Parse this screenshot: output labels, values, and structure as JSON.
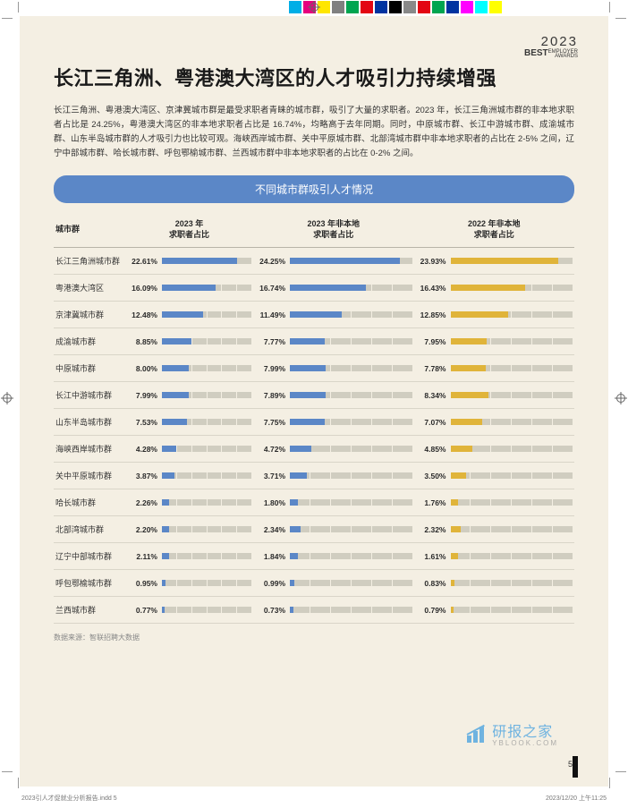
{
  "brand": {
    "year": "2023",
    "best": "BEST",
    "sub": "EMPLOYER\nAWARDS"
  },
  "title": "长江三角洲、粤港澳大湾区的人才吸引力持续增强",
  "intro": "长江三角洲、粤港澳大湾区、京津冀城市群是最受求职者青睐的城市群，吸引了大量的求职者。2023 年，长江三角洲城市群的非本地求职者占比是 24.25%，粤港澳大湾区的非本地求职者占比是 16.74%，均略高于去年同期。同时，中原城市群、长江中游城市群、成渝城市群、山东半岛城市群的人才吸引力也比较可观。海峡西岸城市群、关中平原城市群、北部湾城市群中非本地求职者的占比在 2-5% 之间，辽宁中部城市群、哈长城市群、呼包鄂榆城市群、兰西城市群中非本地求职者的占比在 0-2% 之间。",
  "banner": "不同城市群吸引人才情况",
  "source": "数据来源：智联招聘大数据",
  "pagenum": "5",
  "doc_slug": "2023引人才促就业分析报告.indd   5",
  "timestamp": "2023/12/20   上午11:25",
  "watermark": {
    "line1": "研报之家",
    "line2": "YBLOOK.COM"
  },
  "table": {
    "headers": [
      "城市群",
      "2023 年\n求职者占比",
      "2023 年非本地\n求职者占比",
      "2022 年非本地\n求职者占比"
    ],
    "col_colors": [
      "#5b87c7",
      "#5b87c7",
      "#e0b43a"
    ],
    "max_scale": 27,
    "track_color": "#d0cdc0",
    "rows": [
      {
        "name": "长江三角洲城市群",
        "v": [
          22.61,
          24.25,
          23.93
        ]
      },
      {
        "name": "粤港澳大湾区",
        "v": [
          16.09,
          16.74,
          16.43
        ]
      },
      {
        "name": "京津冀城市群",
        "v": [
          12.48,
          11.49,
          12.85
        ]
      },
      {
        "name": "成渝城市群",
        "v": [
          8.85,
          7.77,
          7.95
        ]
      },
      {
        "name": "中原城市群",
        "v": [
          8.0,
          7.99,
          7.78
        ]
      },
      {
        "name": "长江中游城市群",
        "v": [
          7.99,
          7.89,
          8.34
        ]
      },
      {
        "name": "山东半岛城市群",
        "v": [
          7.53,
          7.75,
          7.07
        ]
      },
      {
        "name": "海峡西岸城市群",
        "v": [
          4.28,
          4.72,
          4.85
        ]
      },
      {
        "name": "关中平原城市群",
        "v": [
          3.87,
          3.71,
          3.5
        ]
      },
      {
        "name": "哈长城市群",
        "v": [
          2.26,
          1.8,
          1.76
        ]
      },
      {
        "name": "北部湾城市群",
        "v": [
          2.2,
          2.34,
          2.32
        ]
      },
      {
        "name": "辽宁中部城市群",
        "v": [
          2.11,
          1.84,
          1.61
        ]
      },
      {
        "name": "呼包鄂榆城市群",
        "v": [
          0.95,
          0.99,
          0.83
        ]
      },
      {
        "name": "兰西城市群",
        "v": [
          0.77,
          0.73,
          0.79
        ]
      }
    ]
  },
  "colorbar": [
    "#00aee6",
    "#e6007e",
    "#ffe600",
    "#808080",
    "#00a550",
    "#e30613",
    "#0033a0",
    "#000000",
    "#898989",
    "#e30613",
    "#00a550",
    "#0033a0",
    "#ff00ff",
    "#00ffff",
    "#ffff00"
  ]
}
